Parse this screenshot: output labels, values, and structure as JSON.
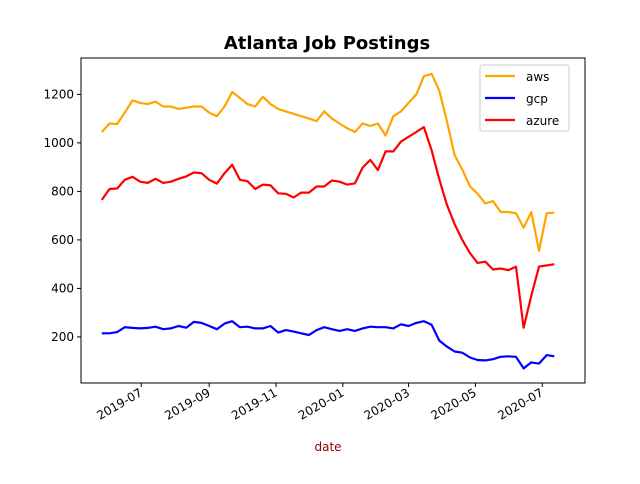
{
  "chart_data": {
    "type": "line",
    "title": "Atlanta Job Postings",
    "xlabel": "date",
    "ylabel": "",
    "ylim": [
      10,
      1350
    ],
    "xlim": [
      "2019-05-07",
      "2020-08-09"
    ],
    "yticks": [
      200,
      400,
      600,
      800,
      1000,
      1200
    ],
    "xticks": [
      "2019-07",
      "2019-09",
      "2019-11",
      "2020-01",
      "2020-03",
      "2020-05",
      "2020-07"
    ],
    "grid": false,
    "legend_position": "top-right",
    "x": [
      "2019-05-26",
      "2019-06-02",
      "2019-06-09",
      "2019-06-16",
      "2019-06-23",
      "2019-06-30",
      "2019-07-07",
      "2019-07-14",
      "2019-07-21",
      "2019-07-28",
      "2019-08-04",
      "2019-08-11",
      "2019-08-18",
      "2019-08-25",
      "2019-09-01",
      "2019-09-08",
      "2019-09-15",
      "2019-09-22",
      "2019-09-29",
      "2019-10-06",
      "2019-10-13",
      "2019-10-20",
      "2019-10-27",
      "2019-11-03",
      "2019-11-10",
      "2019-11-17",
      "2019-11-24",
      "2019-12-01",
      "2019-12-08",
      "2019-12-15",
      "2019-12-22",
      "2019-12-29",
      "2020-01-05",
      "2020-01-12",
      "2020-01-19",
      "2020-01-26",
      "2020-02-02",
      "2020-02-09",
      "2020-02-16",
      "2020-02-23",
      "2020-03-01",
      "2020-03-08",
      "2020-03-15",
      "2020-03-22",
      "2020-03-29",
      "2020-04-05",
      "2020-04-12",
      "2020-04-19",
      "2020-04-26",
      "2020-05-03",
      "2020-05-10",
      "2020-05-17",
      "2020-05-24",
      "2020-05-31",
      "2020-06-07",
      "2020-06-14",
      "2020-06-21",
      "2020-06-28",
      "2020-07-05",
      "2020-07-12"
    ],
    "series": [
      {
        "name": "aws",
        "color": "#ffa500",
        "values": [
          1045,
          1080,
          1078,
          1125,
          1175,
          1165,
          1160,
          1170,
          1150,
          1150,
          1140,
          1145,
          1150,
          1150,
          1125,
          1110,
          1150,
          1210,
          1185,
          1160,
          1150,
          1190,
          1160,
          1140,
          1130,
          1120,
          1110,
          1100,
          1090,
          1130,
          1100,
          1080,
          1060,
          1045,
          1080,
          1070,
          1080,
          1030,
          1110,
          1130,
          1165,
          1200,
          1275,
          1285,
          1215,
          1090,
          950,
          890,
          820,
          790,
          750,
          760,
          715,
          715,
          710,
          650,
          715,
          555,
          710,
          712
        ]
      },
      {
        "name": "gcp",
        "color": "#0000ff",
        "values": [
          215,
          215,
          220,
          240,
          237,
          235,
          237,
          242,
          232,
          235,
          245,
          238,
          262,
          258,
          245,
          232,
          255,
          265,
          240,
          242,
          235,
          235,
          245,
          218,
          228,
          222,
          215,
          208,
          228,
          240,
          232,
          225,
          232,
          225,
          235,
          242,
          240,
          240,
          235,
          252,
          245,
          258,
          265,
          250,
          185,
          160,
          140,
          135,
          115,
          105,
          103,
          108,
          118,
          120,
          118,
          70,
          95,
          90,
          125,
          120
        ]
      },
      {
        "name": "azure",
        "color": "#ff0000",
        "values": [
          765,
          810,
          812,
          848,
          860,
          840,
          835,
          852,
          835,
          840,
          852,
          862,
          878,
          875,
          848,
          832,
          875,
          910,
          848,
          842,
          810,
          828,
          825,
          792,
          790,
          775,
          795,
          795,
          820,
          820,
          845,
          840,
          828,
          833,
          898,
          930,
          888,
          965,
          965,
          1005,
          1025,
          1045,
          1065,
          970,
          850,
          745,
          665,
          600,
          545,
          505,
          510,
          478,
          482,
          475,
          490,
          238,
          370,
          490,
          495,
          500
        ]
      }
    ]
  }
}
